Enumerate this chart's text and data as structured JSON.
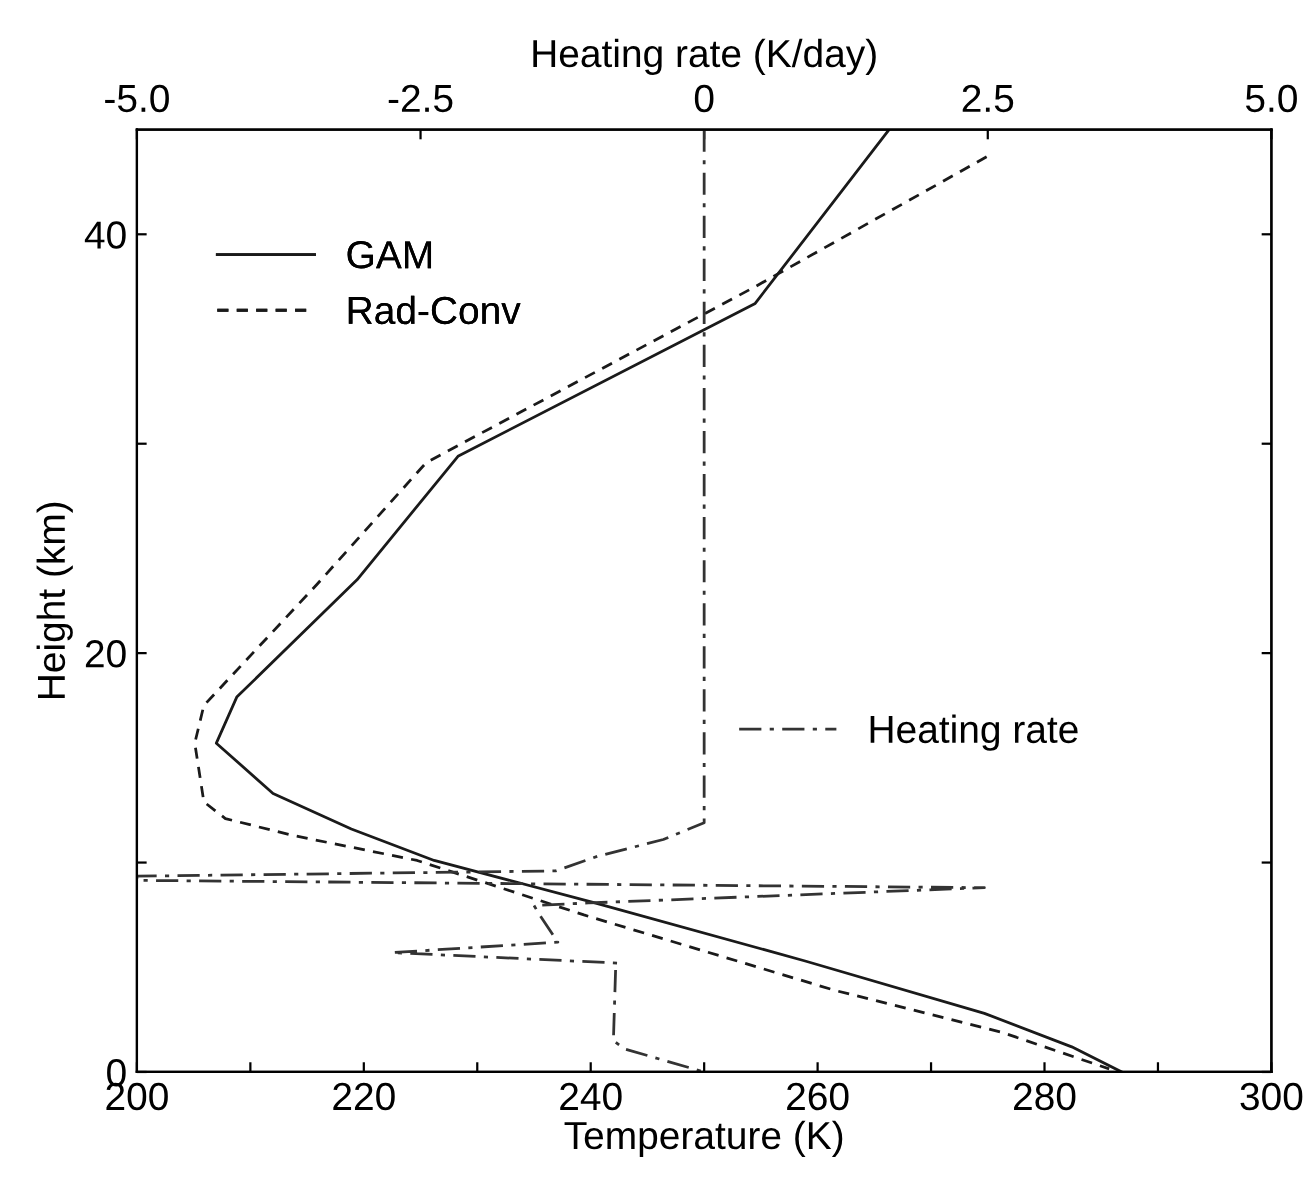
{
  "chart_data": {
    "type": "line",
    "xlabel": "Temperature (K)",
    "ylabel": "Height (km)",
    "x2label": "Heating rate (K/day)",
    "xlim": [
      200,
      300
    ],
    "xticks": [
      200,
      {
        "value": 210,
        "label": null
      },
      220,
      {
        "value": 230,
        "label": null
      },
      240,
      {
        "value": 250,
        "label": null
      },
      260,
      {
        "value": 270,
        "label": null
      },
      280,
      {
        "value": 290,
        "label": null
      },
      300
    ],
    "x2lim": [
      -5,
      5
    ],
    "x2ticks": [
      {
        "value": -5,
        "label": "-5.0"
      },
      {
        "value": -2.5,
        "label": "-2.5"
      },
      0,
      2.5,
      {
        "value": 5,
        "label": "5.0"
      }
    ],
    "ylim": [
      0,
      45
    ],
    "yticks": [
      0,
      {
        "value": 10,
        "label": null
      },
      20,
      {
        "value": 30,
        "label": null
      },
      40
    ],
    "grid": false,
    "legend": "top left",
    "marker": "none",
    "series": [
      {
        "name": "GAM",
        "color": "#1a1a1a",
        "line_style": "solid",
        "x": [
          266.3,
          254.5,
          228.3,
          219.4,
          208.8,
          207.0,
          212.0,
          218.9,
          226.2,
          240.2,
          258.9,
          274.7,
          282.4,
          286.8
        ],
        "values": [
          45,
          36.7,
          29.4,
          23.5,
          17.9,
          15.7,
          13.3,
          11.6,
          10.1,
          8.1,
          5.3,
          2.8,
          1.2,
          0
        ]
      },
      {
        "name": "Rad-Conv",
        "color": "#1a1a1a",
        "line_style": "dashed",
        "x": [
          274.9,
          254.5,
          225.5,
          215.9,
          205.9,
          205.1,
          205.9,
          207.8,
          213.7,
          224.7,
          239.4,
          261.5,
          276.2,
          285.7
        ],
        "values": [
          43.7,
          37.5,
          29.1,
          23.3,
          17.5,
          15.7,
          12.9,
          12.1,
          11.3,
          10.1,
          7.5,
          3.9,
          1.9,
          0.15
        ]
      },
      {
        "name": "Heating rate",
        "color": "#333333",
        "line_style": "dashdot",
        "axis": "x2",
        "x": [
          0,
          0,
          -0.36,
          -0.94,
          -1.31,
          -5,
          -5,
          2.47,
          -1.02,
          -1.5,
          -1.45,
          -1.29,
          -2.75,
          -0.76,
          -0.78,
          -0.8,
          -0.7,
          0
        ],
        "values": [
          45,
          11.9,
          11.1,
          10.3,
          9.6,
          9.35,
          9.15,
          8.8,
          8.07,
          7.95,
          7.5,
          6.2,
          5.7,
          5.2,
          5.0,
          1.5,
          1.1,
          0
        ]
      }
    ]
  }
}
